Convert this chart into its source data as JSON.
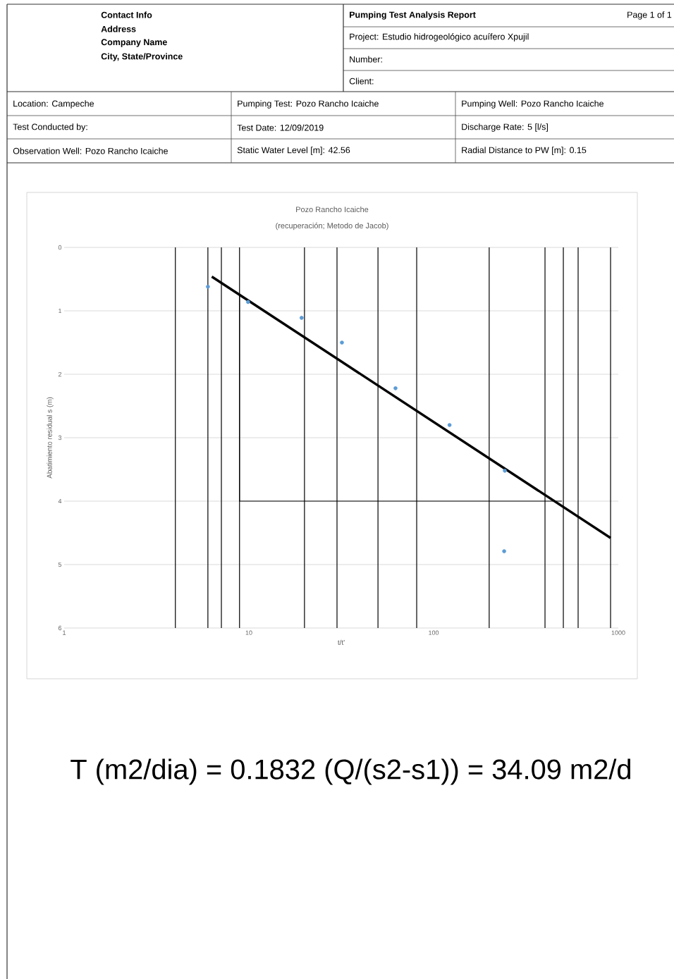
{
  "chart_data": {
    "type": "scatter",
    "title": "Pozo Rancho Icaiche",
    "subtitle": "(recuperación; Metodo de Jacob)",
    "xlabel": "t/t'",
    "ylabel": "Abatimiento residual s (m)",
    "log": "x",
    "xlim": [
      1,
      1000
    ],
    "xticks": [
      1,
      10,
      100,
      1000
    ],
    "ylim": [
      6,
      0
    ],
    "yticks": [
      0,
      1,
      2,
      3,
      4,
      5,
      6
    ],
    "grid": "y",
    "marker": "circle",
    "series": [
      {
        "color": "#5b9bd5",
        "x": [
          6.0,
          9.9,
          19.3,
          31.9,
          62.2,
          122,
          243,
          241
        ],
        "values": [
          0.62,
          0.86,
          1.11,
          1.5,
          2.22,
          2.8,
          3.52,
          4.79
        ]
      },
      {
        "type": "line",
        "color": "#000000",
        "marker": "none",
        "x": [
          6.3,
          908
        ],
        "values": [
          0.46,
          4.58
        ]
      },
      {
        "type": "line",
        "color": "#000000",
        "marker": "none",
        "x": [
          8.9,
          8.9,
          495
        ],
        "values": [
          0.74,
          4.0,
          4.0
        ]
      }
    ],
    "ref_lines": [
      {
        "axis": "x",
        "value": 4.0,
        "color": "#000000"
      },
      {
        "axis": "x",
        "value": 6.0,
        "color": "#000000"
      },
      {
        "axis": "x",
        "value": 7.1,
        "color": "#000000"
      },
      {
        "axis": "x",
        "value": 8.9,
        "color": "#000000"
      },
      {
        "axis": "x",
        "value": 20,
        "color": "#000000"
      },
      {
        "axis": "x",
        "value": 30,
        "color": "#000000"
      },
      {
        "axis": "x",
        "value": 50,
        "color": "#000000"
      },
      {
        "axis": "x",
        "value": 81,
        "color": "#000000"
      },
      {
        "axis": "x",
        "value": 200,
        "color": "#000000"
      },
      {
        "axis": "x",
        "value": 401,
        "color": "#000000"
      },
      {
        "axis": "x",
        "value": 504,
        "color": "#000000"
      },
      {
        "axis": "x",
        "value": 606,
        "color": "#000000"
      },
      {
        "axis": "x",
        "value": 908,
        "color": "#000000"
      }
    ],
    "annotations": [
      "Contact Info",
      "Address",
      "Company Name",
      "City, State/Province",
      "Pumping Test Analysis Report",
      "Page 1 of 1",
      "Project:  Estudio hidrogeológico acuífero Xpujil",
      "Number:",
      "Client:",
      "Location: Campeche",
      "Pumping Test: Pozo Rancho Icaiche",
      "Pumping Well: Pozo Rancho Icaiche",
      "Test Conducted by:",
      "Test Date: 12/09/2019",
      "Discharge Rate: 5 [l/s]",
      "Observation Well: Pozo Rancho Icaiche",
      "Static Water Level [m]: 42.56",
      "Radial Distance to PW [m]: 0.15",
      "T (m2/dia) = 0.1832 (Q/(s2-s1)) = 34.09 m2/d"
    ]
  }
}
